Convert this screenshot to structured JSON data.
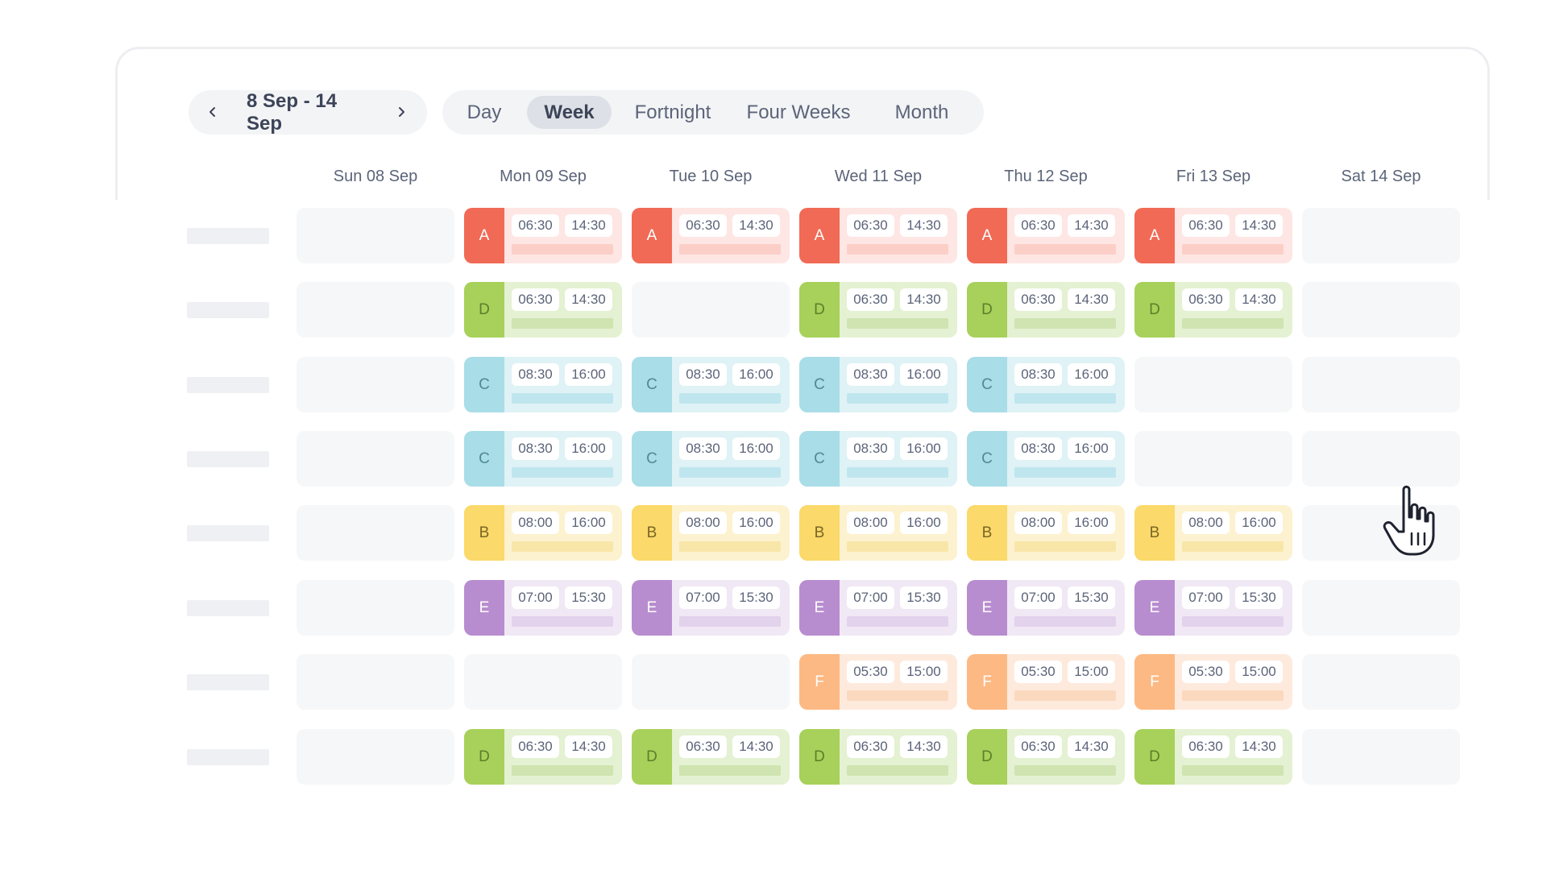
{
  "date_nav": {
    "range": "8 Sep - 14 Sep",
    "prev_icon": "chevron-left-icon",
    "next_icon": "chevron-right-icon"
  },
  "view_tabs": [
    {
      "label": "Day",
      "active": false
    },
    {
      "label": "Week",
      "active": true
    },
    {
      "label": "Fortnight",
      "active": false
    },
    {
      "label": "Four Weeks",
      "active": false
    },
    {
      "label": "Month",
      "active": false
    }
  ],
  "days": [
    "Sun 08 Sep",
    "Mon 09 Sep",
    "Tue 10 Sep",
    "Wed 11 Sep",
    "Thu 12 Sep",
    "Fri 13 Sep",
    "Sat 14 Sep"
  ],
  "roster": [
    [
      null,
      {
        "code": "A",
        "start": "06:30",
        "end": "14:30"
      },
      {
        "code": "A",
        "start": "06:30",
        "end": "14:30"
      },
      {
        "code": "A",
        "start": "06:30",
        "end": "14:30"
      },
      {
        "code": "A",
        "start": "06:30",
        "end": "14:30"
      },
      {
        "code": "A",
        "start": "06:30",
        "end": "14:30"
      },
      null
    ],
    [
      null,
      {
        "code": "D",
        "start": "06:30",
        "end": "14:30"
      },
      null,
      {
        "code": "D",
        "start": "06:30",
        "end": "14:30"
      },
      {
        "code": "D",
        "start": "06:30",
        "end": "14:30"
      },
      {
        "code": "D",
        "start": "06:30",
        "end": "14:30"
      },
      null
    ],
    [
      null,
      {
        "code": "C",
        "start": "08:30",
        "end": "16:00"
      },
      {
        "code": "C",
        "start": "08:30",
        "end": "16:00"
      },
      {
        "code": "C",
        "start": "08:30",
        "end": "16:00"
      },
      {
        "code": "C",
        "start": "08:30",
        "end": "16:00"
      },
      null,
      null
    ],
    [
      null,
      {
        "code": "C",
        "start": "08:30",
        "end": "16:00"
      },
      {
        "code": "C",
        "start": "08:30",
        "end": "16:00"
      },
      {
        "code": "C",
        "start": "08:30",
        "end": "16:00"
      },
      {
        "code": "C",
        "start": "08:30",
        "end": "16:00"
      },
      null,
      null
    ],
    [
      null,
      {
        "code": "B",
        "start": "08:00",
        "end": "16:00"
      },
      {
        "code": "B",
        "start": "08:00",
        "end": "16:00"
      },
      {
        "code": "B",
        "start": "08:00",
        "end": "16:00"
      },
      {
        "code": "B",
        "start": "08:00",
        "end": "16:00"
      },
      {
        "code": "B",
        "start": "08:00",
        "end": "16:00"
      },
      null
    ],
    [
      null,
      {
        "code": "E",
        "start": "07:00",
        "end": "15:30"
      },
      {
        "code": "E",
        "start": "07:00",
        "end": "15:30"
      },
      {
        "code": "E",
        "start": "07:00",
        "end": "15:30"
      },
      {
        "code": "E",
        "start": "07:00",
        "end": "15:30"
      },
      {
        "code": "E",
        "start": "07:00",
        "end": "15:30"
      },
      null
    ],
    [
      null,
      null,
      null,
      {
        "code": "F",
        "start": "05:30",
        "end": "15:00"
      },
      {
        "code": "F",
        "start": "05:30",
        "end": "15:00"
      },
      {
        "code": "F",
        "start": "05:30",
        "end": "15:00"
      },
      null
    ],
    [
      null,
      {
        "code": "D",
        "start": "06:30",
        "end": "14:30"
      },
      {
        "code": "D",
        "start": "06:30",
        "end": "14:30"
      },
      {
        "code": "D",
        "start": "06:30",
        "end": "14:30"
      },
      {
        "code": "D",
        "start": "06:30",
        "end": "14:30"
      },
      {
        "code": "D",
        "start": "06:30",
        "end": "14:30"
      },
      null
    ]
  ],
  "shift_colors": {
    "A": "#f16a55",
    "B": "#fbd96a",
    "C": "#a9dde7",
    "D": "#a7d15a",
    "E": "#b88dcf",
    "F": "#fdb983"
  },
  "cursor_icon": "pointer-hand-icon"
}
